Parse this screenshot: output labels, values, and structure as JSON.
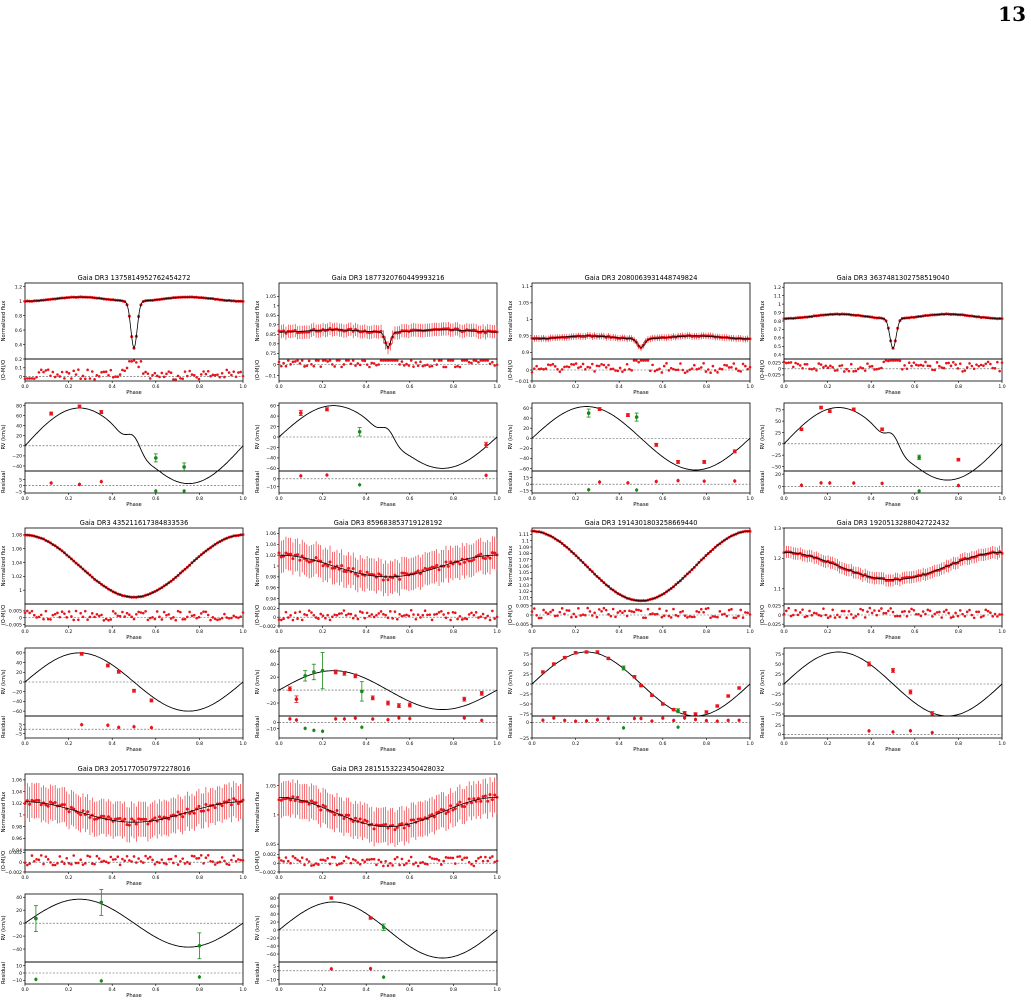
{
  "page": {
    "number": "13"
  },
  "labels": {
    "phase": "Phase",
    "normalized_flux": "Normalized flux",
    "o_m_o": "(O-M)/O",
    "rv": "RV (km/s)",
    "residual": "Residual"
  },
  "colors": {
    "model": "#000000",
    "data_red": "#e8141b",
    "data_green": "#188a18",
    "zero_line": "#555555"
  },
  "chart_data": [
    {
      "type": "scatter",
      "title": "Gaia DR3 1375814952762454272",
      "lc": {
        "kind": "eclipse",
        "depth": 0.87,
        "width": 0.02,
        "amp": 0.11,
        "ylim": [
          0.2,
          1.25
        ],
        "yticks": [
          0.2,
          0.4,
          0.6,
          0.8,
          1.0,
          1.2
        ],
        "err": 0.015,
        "res_ylim": [
          -0.05,
          0.2
        ],
        "res_yticks": [
          0.0,
          0.1
        ]
      },
      "rv": {
        "K": 75,
        "ylim": [
          -50,
          85
        ],
        "yticks": [
          -40,
          -20,
          0,
          20,
          40,
          60,
          80
        ],
        "rm": true,
        "points": [
          [
            0.12,
            64,
            "red",
            3
          ],
          [
            0.25,
            78,
            "red",
            3
          ],
          [
            0.35,
            67,
            "red",
            3
          ],
          [
            0.6,
            -24,
            "green",
            8
          ],
          [
            0.73,
            -42,
            "green",
            8
          ]
        ],
        "res_ylim": [
          -6,
          12
        ],
        "res_yticks": [
          -5,
          0,
          5
        ]
      }
    },
    {
      "type": "scatter",
      "title": "Gaia DR3 1877320760449993216",
      "lc": {
        "kind": "eclipse",
        "depth": 0.28,
        "width": 0.018,
        "amp": 0.06,
        "ylim": [
          0.72,
          1.12
        ],
        "yticks": [
          0.75,
          0.8,
          0.85,
          0.9,
          0.95,
          1.0,
          1.05
        ],
        "err": 0.035,
        "res_ylim": [
          -0.15,
          0.05
        ],
        "res_yticks": [
          -0.1,
          0.0
        ]
      },
      "rv": {
        "K": 60,
        "ylim": [
          -65,
          65
        ],
        "yticks": [
          -60,
          -40,
          -20,
          0,
          20,
          40,
          60
        ],
        "rm": true,
        "points": [
          [
            0.1,
            46,
            "red",
            5
          ],
          [
            0.22,
            53,
            "red",
            3
          ],
          [
            0.37,
            10,
            "green",
            8
          ],
          [
            0.95,
            -15,
            "red",
            5
          ]
        ],
        "res_ylim": [
          -18,
          10
        ],
        "res_yticks": [
          -10,
          0
        ]
      }
    },
    {
      "type": "scatter",
      "title": "Gaia DR3 2080063931448749824",
      "lc": {
        "kind": "eclipse",
        "depth": 0.16,
        "width": 0.022,
        "amp": 0.08,
        "ylim": [
          0.88,
          1.11
        ],
        "yticks": [
          0.9,
          0.95,
          1.0,
          1.05,
          1.1
        ],
        "err": 0.01,
        "res_ylim": [
          -0.01,
          0.01
        ],
        "res_yticks": [
          -0.01,
          0.0
        ]
      },
      "rv": {
        "K": 63,
        "ylim": [
          -65,
          70
        ],
        "yticks": [
          -60,
          -40,
          -20,
          0,
          20,
          40,
          60
        ],
        "rm": false,
        "points": [
          [
            0.26,
            50,
            "green",
            8
          ],
          [
            0.31,
            58,
            "red",
            3
          ],
          [
            0.44,
            46,
            "red",
            3
          ],
          [
            0.48,
            42,
            "green",
            8
          ],
          [
            0.57,
            -13,
            "red",
            3
          ],
          [
            0.67,
            -47,
            "red",
            3
          ],
          [
            0.79,
            -47,
            "red",
            3
          ],
          [
            0.93,
            -26,
            "red",
            3
          ]
        ],
        "res_ylim": [
          -20,
          30
        ],
        "res_yticks": [
          -15,
          0,
          15
        ]
      }
    },
    {
      "type": "scatter",
      "title": "Gaia DR3 3637481302758519040",
      "lc": {
        "kind": "eclipse",
        "depth": 0.55,
        "width": 0.02,
        "amp": 0.12,
        "ylim": [
          0.35,
          1.25
        ],
        "yticks": [
          0.4,
          0.5,
          0.6,
          0.7,
          0.8,
          0.9,
          1.0,
          1.1,
          1.2
        ],
        "err": 0.015,
        "res_ylim": [
          -0.05,
          0.04
        ],
        "res_yticks": [
          -0.025,
          0.0,
          0.025
        ]
      },
      "rv": {
        "K": 80,
        "ylim": [
          -60,
          90
        ],
        "yticks": [
          -50,
          -25,
          0,
          25,
          50,
          75
        ],
        "rm": true,
        "points": [
          [
            0.08,
            32,
            "red",
            3
          ],
          [
            0.17,
            80,
            "red",
            3
          ],
          [
            0.21,
            72,
            "red",
            3
          ],
          [
            0.32,
            76,
            "red",
            3
          ],
          [
            0.45,
            32,
            "red",
            3
          ],
          [
            0.62,
            -30,
            "green",
            5
          ],
          [
            0.8,
            -35,
            "red",
            3
          ]
        ],
        "res_ylim": [
          -10,
          25
        ],
        "res_yticks": [
          0,
          20
        ]
      }
    },
    {
      "type": "scatter",
      "title": "Gaia DR3 435211617384833536",
      "lc": {
        "kind": "sine",
        "amp": 0.09,
        "ylim": [
          0.98,
          1.09
        ],
        "yticks": [
          1.0,
          1.02,
          1.04,
          1.06,
          1.08
        ],
        "err": 0.002,
        "phase0": 0.5,
        "res_ylim": [
          -0.006,
          0.01
        ],
        "res_yticks": [
          -0.005,
          0.0,
          0.005
        ]
      },
      "rv": {
        "K": 60,
        "ylim": [
          -70,
          70
        ],
        "yticks": [
          -60,
          -40,
          -20,
          0,
          20,
          40,
          60
        ],
        "rm": false,
        "points": [
          [
            0.26,
            58,
            "red",
            3
          ],
          [
            0.38,
            34,
            "red",
            3
          ],
          [
            0.43,
            21,
            "red",
            3
          ],
          [
            0.5,
            -18,
            "red",
            3
          ],
          [
            0.58,
            -38,
            "red",
            3
          ]
        ],
        "res_ylim": [
          -10,
          15
        ],
        "res_yticks": [
          -5,
          0,
          5
        ]
      }
    },
    {
      "type": "scatter",
      "title": "Gaia DR3 859683853719128192",
      "lc": {
        "kind": "sine",
        "amp": 0.04,
        "ylim": [
          0.93,
          1.07
        ],
        "yticks": [
          0.94,
          0.96,
          0.98,
          1.0,
          1.02,
          1.04,
          1.06
        ],
        "err": 0.03,
        "phase0": 0.5,
        "res_ylim": [
          -0.002,
          0.003
        ],
        "res_yticks": [
          -0.002,
          0.0,
          0.002
        ]
      },
      "rv": {
        "K": 30,
        "ylim": [
          -40,
          65
        ],
        "yticks": [
          -20,
          0,
          20,
          40,
          60
        ],
        "rm": false,
        "points": [
          [
            0.05,
            2,
            "red",
            3
          ],
          [
            0.08,
            -14,
            "red",
            5
          ],
          [
            0.12,
            22,
            "green",
            8
          ],
          [
            0.16,
            28,
            "green",
            12
          ],
          [
            0.2,
            30,
            "green",
            28
          ],
          [
            0.26,
            28,
            "red",
            3
          ],
          [
            0.3,
            26,
            "red",
            3
          ],
          [
            0.35,
            22,
            "red",
            3
          ],
          [
            0.38,
            -2,
            "green",
            15
          ],
          [
            0.43,
            -12,
            "red",
            3
          ],
          [
            0.5,
            -20,
            "red",
            3
          ],
          [
            0.55,
            -24,
            "red",
            3
          ],
          [
            0.6,
            -23,
            "red",
            3
          ],
          [
            0.85,
            -14,
            "red",
            3
          ],
          [
            0.93,
            -5,
            "red",
            3
          ]
        ],
        "res_ylim": [
          -25,
          10
        ],
        "res_yticks": [
          -10,
          0
        ]
      }
    },
    {
      "type": "scatter",
      "title": "Gaia DR3 1914301803258669440",
      "lc": {
        "kind": "sine",
        "amp": 0.11,
        "ylim": [
          1.0,
          1.12
        ],
        "yticks": [
          1.01,
          1.02,
          1.03,
          1.04,
          1.05,
          1.06,
          1.07,
          1.08,
          1.09,
          1.1,
          1.11
        ],
        "err": 0.002,
        "phase0": 0.5,
        "res_ylim": [
          -0.006,
          0.006
        ],
        "res_yticks": [
          -0.005,
          0.0,
          0.005
        ]
      },
      "rv": {
        "K": 80,
        "ylim": [
          -80,
          90
        ],
        "yticks": [
          -75,
          -50,
          -25,
          0,
          25,
          50,
          75
        ],
        "rm": false,
        "points": [
          [
            0.05,
            30,
            "red",
            3
          ],
          [
            0.1,
            50,
            "red",
            3
          ],
          [
            0.15,
            66,
            "red",
            3
          ],
          [
            0.2,
            78,
            "red",
            3
          ],
          [
            0.25,
            80,
            "red",
            3
          ],
          [
            0.3,
            80,
            "red",
            3
          ],
          [
            0.35,
            64,
            "red",
            3
          ],
          [
            0.42,
            40,
            "green",
            5
          ],
          [
            0.47,
            18,
            "red",
            3
          ],
          [
            0.5,
            -4,
            "red",
            3
          ],
          [
            0.55,
            -28,
            "red",
            3
          ],
          [
            0.6,
            -50,
            "red",
            3
          ],
          [
            0.65,
            -64,
            "red",
            3
          ],
          [
            0.67,
            -67,
            "green",
            5
          ],
          [
            0.7,
            -72,
            "red",
            3
          ],
          [
            0.75,
            -75,
            "red",
            3
          ],
          [
            0.8,
            -70,
            "red",
            3
          ],
          [
            0.85,
            -55,
            "red",
            3
          ],
          [
            0.9,
            -30,
            "red",
            3
          ],
          [
            0.95,
            -10,
            "red",
            3
          ]
        ],
        "res_ylim": [
          -25,
          10
        ],
        "res_yticks": [
          -25,
          0
        ]
      }
    },
    {
      "type": "scatter",
      "title": "Gaia DR3 1920513288042722432",
      "lc": {
        "kind": "sine",
        "amp": 0.09,
        "ylim": [
          1.05,
          1.3
        ],
        "yticks": [
          1.1,
          1.2,
          1.3
        ],
        "err": 0.02,
        "phase0": 0.5,
        "res_ylim": [
          -0.03,
          0.03
        ],
        "res_yticks": [
          -0.025,
          0.0,
          0.025
        ]
      },
      "rv": {
        "K": 80,
        "ylim": [
          -80,
          90
        ],
        "yticks": [
          -75,
          -50,
          -25,
          0,
          25,
          50,
          75
        ],
        "rm": false,
        "points": [
          [
            0.39,
            50,
            "red",
            5
          ],
          [
            0.5,
            34,
            "red",
            5
          ],
          [
            0.58,
            -20,
            "red",
            5
          ],
          [
            0.68,
            -74,
            "red",
            5
          ]
        ],
        "res_ylim": [
          -10,
          50
        ],
        "res_yticks": [
          0,
          25
        ]
      }
    },
    {
      "type": "scatter",
      "title": "Gaia DR3 2051770507972278016",
      "lc": {
        "kind": "sine",
        "amp": 0.035,
        "ylim": [
          0.94,
          1.07
        ],
        "yticks": [
          0.94,
          0.96,
          0.98,
          1.0,
          1.02,
          1.04,
          1.06
        ],
        "err": 0.03,
        "phase0": 0.5,
        "res_ylim": [
          -0.002,
          0.0025
        ],
        "res_yticks": [
          -0.002,
          0.0,
          0.002
        ]
      },
      "rv": {
        "K": 37,
        "ylim": [
          -60,
          45
        ],
        "yticks": [
          -40,
          -20,
          0,
          20,
          40
        ],
        "rm": false,
        "points": [
          [
            0.05,
            7,
            "green",
            20
          ],
          [
            0.35,
            32,
            "green",
            20
          ],
          [
            0.8,
            -35,
            "green",
            20
          ]
        ],
        "res_ylim": [
          -15,
          15
        ],
        "res_yticks": [
          -10,
          0,
          10
        ]
      }
    },
    {
      "type": "scatter",
      "title": "Gaia DR3 2815153223450428032",
      "lc": {
        "kind": "sine",
        "amp": 0.05,
        "ylim": [
          0.94,
          1.07
        ],
        "yticks": [
          0.95,
          1.0,
          1.05
        ],
        "err": 0.03,
        "phase0": 0.5,
        "res_ylim": [
          -0.002,
          0.003
        ],
        "res_yticks": [
          -0.002,
          0.0,
          0.002
        ]
      },
      "rv": {
        "K": 70,
        "ylim": [
          -80,
          90
        ],
        "yticks": [
          -60,
          -40,
          -20,
          0,
          20,
          40,
          60,
          80
        ],
        "rm": false,
        "points": [
          [
            0.24,
            80,
            "red",
            3
          ],
          [
            0.42,
            30,
            "red",
            3
          ],
          [
            0.48,
            7,
            "green",
            8
          ]
        ],
        "res_ylim": [
          -15,
          10
        ],
        "res_yticks": [
          -10,
          0,
          5
        ]
      }
    }
  ]
}
